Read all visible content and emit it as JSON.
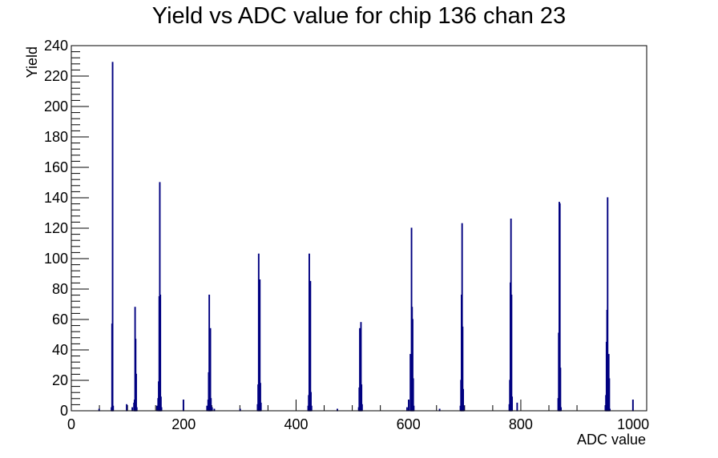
{
  "chart_data": {
    "type": "bar",
    "title": "Yield vs ADC value for chip 136 chan 23",
    "xlabel": "ADC value",
    "ylabel": "Yield",
    "xlim": [
      0,
      1024
    ],
    "ylim": [
      0,
      240
    ],
    "grid": false,
    "line_color": "#000080",
    "xticks": [
      0,
      200,
      400,
      600,
      800,
      1000
    ],
    "yticks": [
      0,
      20,
      40,
      60,
      80,
      100,
      120,
      140,
      160,
      180,
      200,
      220,
      240
    ],
    "bins": [
      {
        "x": 49,
        "y": 1
      },
      {
        "x": 71,
        "y": 2
      },
      {
        "x": 72,
        "y": 57
      },
      {
        "x": 73,
        "y": 229
      },
      {
        "x": 74,
        "y": 3
      },
      {
        "x": 98,
        "y": 4
      },
      {
        "x": 108,
        "y": 2
      },
      {
        "x": 111,
        "y": 5
      },
      {
        "x": 112,
        "y": 7
      },
      {
        "x": 113,
        "y": 68
      },
      {
        "x": 114,
        "y": 47
      },
      {
        "x": 115,
        "y": 24
      },
      {
        "x": 116,
        "y": 2
      },
      {
        "x": 152,
        "y": 3
      },
      {
        "x": 154,
        "y": 8
      },
      {
        "x": 155,
        "y": 19
      },
      {
        "x": 156,
        "y": 75
      },
      {
        "x": 157,
        "y": 150
      },
      {
        "x": 158,
        "y": 76
      },
      {
        "x": 159,
        "y": 9
      },
      {
        "x": 160,
        "y": 2
      },
      {
        "x": 199,
        "y": 7
      },
      {
        "x": 241,
        "y": 3
      },
      {
        "x": 243,
        "y": 7
      },
      {
        "x": 244,
        "y": 25
      },
      {
        "x": 245,
        "y": 76
      },
      {
        "x": 246,
        "y": 35
      },
      {
        "x": 247,
        "y": 54
      },
      {
        "x": 248,
        "y": 8
      },
      {
        "x": 250,
        "y": 2
      },
      {
        "x": 254,
        "y": 1
      },
      {
        "x": 300,
        "y": 1
      },
      {
        "x": 331,
        "y": 4
      },
      {
        "x": 332,
        "y": 17
      },
      {
        "x": 333,
        "y": 103
      },
      {
        "x": 334,
        "y": 80
      },
      {
        "x": 335,
        "y": 86
      },
      {
        "x": 336,
        "y": 18
      },
      {
        "x": 337,
        "y": 5
      },
      {
        "x": 421,
        "y": 3
      },
      {
        "x": 422,
        "y": 10
      },
      {
        "x": 423,
        "y": 103
      },
      {
        "x": 424,
        "y": 80
      },
      {
        "x": 425,
        "y": 85
      },
      {
        "x": 426,
        "y": 12
      },
      {
        "x": 427,
        "y": 3
      },
      {
        "x": 473,
        "y": 1
      },
      {
        "x": 511,
        "y": 2
      },
      {
        "x": 512,
        "y": 15
      },
      {
        "x": 513,
        "y": 54
      },
      {
        "x": 514,
        "y": 50
      },
      {
        "x": 515,
        "y": 58
      },
      {
        "x": 516,
        "y": 17
      },
      {
        "x": 517,
        "y": 4
      },
      {
        "x": 597,
        "y": 2
      },
      {
        "x": 600,
        "y": 7
      },
      {
        "x": 603,
        "y": 37
      },
      {
        "x": 604,
        "y": 15
      },
      {
        "x": 605,
        "y": 120
      },
      {
        "x": 606,
        "y": 68
      },
      {
        "x": 607,
        "y": 60
      },
      {
        "x": 608,
        "y": 21
      },
      {
        "x": 609,
        "y": 3
      },
      {
        "x": 655,
        "y": 1
      },
      {
        "x": 692,
        "y": 3
      },
      {
        "x": 693,
        "y": 20
      },
      {
        "x": 694,
        "y": 76
      },
      {
        "x": 695,
        "y": 123
      },
      {
        "x": 696,
        "y": 55
      },
      {
        "x": 697,
        "y": 14
      },
      {
        "x": 698,
        "y": 3
      },
      {
        "x": 779,
        "y": 4
      },
      {
        "x": 780,
        "y": 20
      },
      {
        "x": 781,
        "y": 84
      },
      {
        "x": 782,
        "y": 126
      },
      {
        "x": 783,
        "y": 76
      },
      {
        "x": 784,
        "y": 9
      },
      {
        "x": 793,
        "y": 5
      },
      {
        "x": 866,
        "y": 8
      },
      {
        "x": 867,
        "y": 51
      },
      {
        "x": 868,
        "y": 137
      },
      {
        "x": 869,
        "y": 136
      },
      {
        "x": 870,
        "y": 28
      },
      {
        "x": 871,
        "y": 2
      },
      {
        "x": 950,
        "y": 3
      },
      {
        "x": 951,
        "y": 10
      },
      {
        "x": 952,
        "y": 45
      },
      {
        "x": 953,
        "y": 66
      },
      {
        "x": 954,
        "y": 140
      },
      {
        "x": 955,
        "y": 9
      },
      {
        "x": 956,
        "y": 37
      },
      {
        "x": 957,
        "y": 21
      },
      {
        "x": 958,
        "y": 1
      },
      {
        "x": 999,
        "y": 7
      }
    ]
  }
}
